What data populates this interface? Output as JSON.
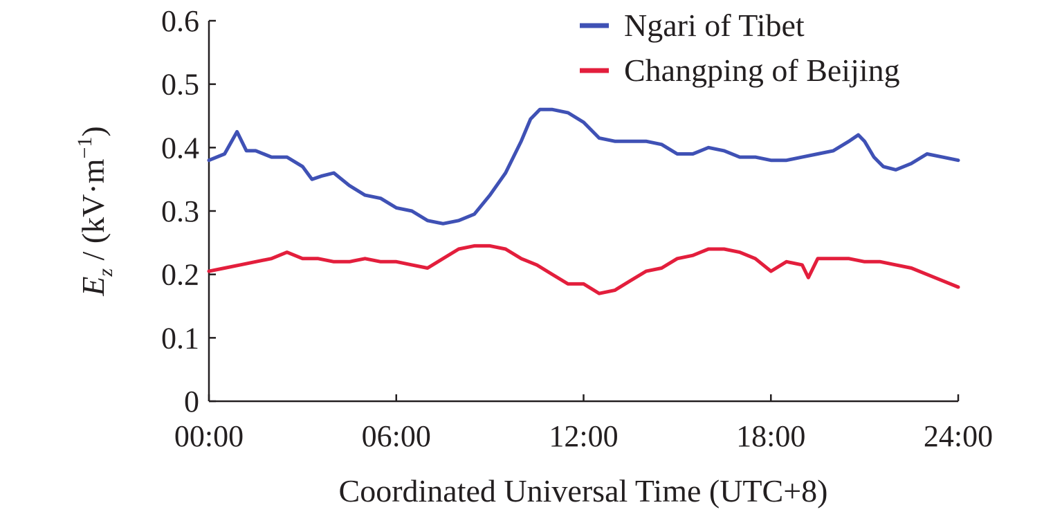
{
  "chart_data": {
    "type": "line",
    "title": "",
    "xlabel": "Coordinated Universal Time (UTC+8)",
    "ylabel": {
      "symbol": "E",
      "subscript": "z",
      "unit_prefix": " / (kV·m",
      "unit_exponent": "−1",
      "unit_suffix": ")"
    },
    "xlim": [
      0,
      24
    ],
    "ylim": [
      0,
      0.6
    ],
    "x_ticks": [
      {
        "value": 0,
        "label": "00:00"
      },
      {
        "value": 6,
        "label": "06:00"
      },
      {
        "value": 12,
        "label": "12:00"
      },
      {
        "value": 18,
        "label": "18:00"
      },
      {
        "value": 24,
        "label": "24:00"
      }
    ],
    "y_ticks": [
      {
        "value": 0,
        "label": "0"
      },
      {
        "value": 0.1,
        "label": "0.1"
      },
      {
        "value": 0.2,
        "label": "0.2"
      },
      {
        "value": 0.3,
        "label": "0.3"
      },
      {
        "value": 0.4,
        "label": "0.4"
      },
      {
        "value": 0.5,
        "label": "0.5"
      },
      {
        "value": 0.6,
        "label": "0.6"
      }
    ],
    "grid": false,
    "legend_position": "top-right",
    "series": [
      {
        "name": "Ngari of Tibet",
        "color": "#3f51b5",
        "x": [
          0,
          0.5,
          0.9,
          1.2,
          1.5,
          2.0,
          2.5,
          3.0,
          3.3,
          3.6,
          4.0,
          4.5,
          5.0,
          5.5,
          6.0,
          6.5,
          7.0,
          7.5,
          8.0,
          8.5,
          9.0,
          9.5,
          10.0,
          10.3,
          10.6,
          11.0,
          11.5,
          12.0,
          12.5,
          13.0,
          13.5,
          14.0,
          14.5,
          15.0,
          15.5,
          16.0,
          16.5,
          17.0,
          17.5,
          18.0,
          18.5,
          19.0,
          19.5,
          20.0,
          20.5,
          20.8,
          21.0,
          21.3,
          21.6,
          22.0,
          22.5,
          23.0,
          23.5,
          24.0
        ],
        "y": [
          0.38,
          0.39,
          0.425,
          0.395,
          0.395,
          0.385,
          0.385,
          0.37,
          0.35,
          0.355,
          0.36,
          0.34,
          0.325,
          0.32,
          0.305,
          0.3,
          0.285,
          0.28,
          0.285,
          0.295,
          0.325,
          0.36,
          0.41,
          0.445,
          0.46,
          0.46,
          0.455,
          0.44,
          0.415,
          0.41,
          0.41,
          0.41,
          0.405,
          0.39,
          0.39,
          0.4,
          0.395,
          0.385,
          0.385,
          0.38,
          0.38,
          0.385,
          0.39,
          0.395,
          0.41,
          0.42,
          0.41,
          0.385,
          0.37,
          0.365,
          0.375,
          0.39,
          0.385,
          0.38
        ]
      },
      {
        "name": "Changping of Beijing",
        "color": "#e31e3c",
        "x": [
          0,
          0.5,
          1.0,
          1.5,
          2.0,
          2.5,
          3.0,
          3.5,
          4.0,
          4.5,
          5.0,
          5.5,
          6.0,
          6.5,
          7.0,
          7.5,
          8.0,
          8.5,
          9.0,
          9.5,
          10.0,
          10.5,
          11.0,
          11.5,
          12.0,
          12.5,
          13.0,
          13.5,
          14.0,
          14.5,
          15.0,
          15.5,
          16.0,
          16.5,
          17.0,
          17.5,
          18.0,
          18.5,
          19.0,
          19.2,
          19.5,
          20.0,
          20.5,
          21.0,
          21.5,
          22.0,
          22.5,
          23.0,
          23.5,
          24.0
        ],
        "y": [
          0.205,
          0.21,
          0.215,
          0.22,
          0.225,
          0.235,
          0.225,
          0.225,
          0.22,
          0.22,
          0.225,
          0.22,
          0.22,
          0.215,
          0.21,
          0.225,
          0.24,
          0.245,
          0.245,
          0.24,
          0.225,
          0.215,
          0.2,
          0.185,
          0.185,
          0.17,
          0.175,
          0.19,
          0.205,
          0.21,
          0.225,
          0.23,
          0.24,
          0.24,
          0.235,
          0.225,
          0.205,
          0.22,
          0.215,
          0.195,
          0.225,
          0.225,
          0.225,
          0.22,
          0.22,
          0.215,
          0.21,
          0.2,
          0.19,
          0.18
        ]
      }
    ]
  }
}
